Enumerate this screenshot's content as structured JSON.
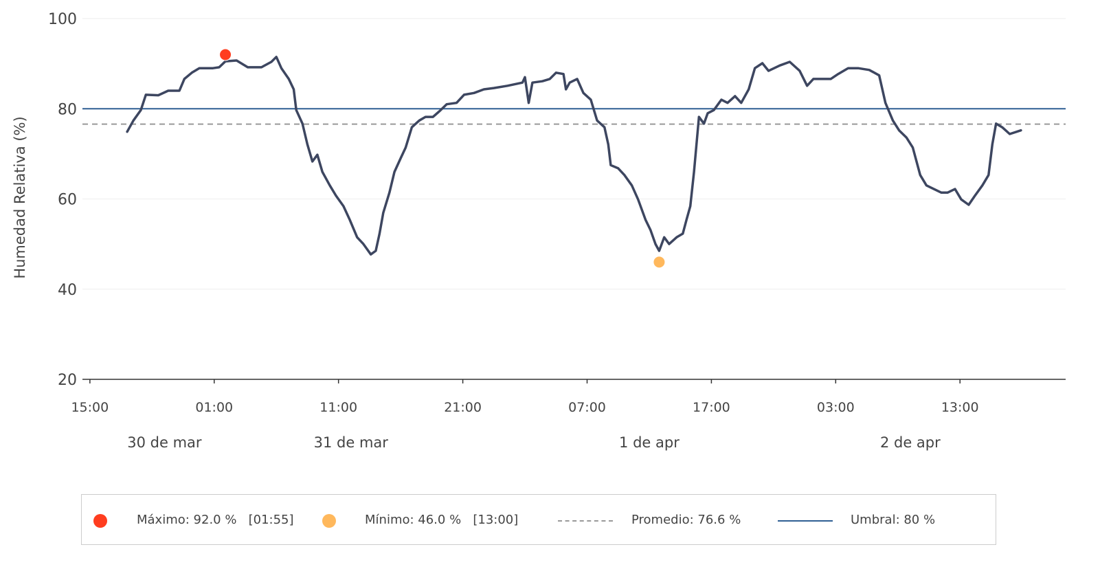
{
  "chart_data": {
    "type": "line",
    "title": "",
    "ylabel": "Humedad Relativa (%)",
    "xlabel": "",
    "x_unit": "hours since 30 mar 15:00",
    "xlim": [
      -0.6,
      78.5
    ],
    "ylim": [
      20,
      100
    ],
    "yticks": [
      20,
      40,
      60,
      80,
      100
    ],
    "xticks": [
      {
        "h": 0,
        "label": "15:00"
      },
      {
        "h": 10,
        "label": "01:00"
      },
      {
        "h": 20,
        "label": "11:00"
      },
      {
        "h": 30,
        "label": "21:00"
      },
      {
        "h": 40,
        "label": "07:00"
      },
      {
        "h": 50,
        "label": "17:00"
      },
      {
        "h": 60,
        "label": "03:00"
      },
      {
        "h": 70,
        "label": "13:00"
      }
    ],
    "date_labels": [
      {
        "h": 6,
        "label": "30 de mar"
      },
      {
        "h": 21,
        "label": "31 de mar"
      },
      {
        "h": 45,
        "label": "1 de apr"
      },
      {
        "h": 66,
        "label": "2 de apr"
      }
    ],
    "grid": true,
    "colors": {
      "line": "#3d4660",
      "max": "#ff3d1f",
      "min": "#ffb85c",
      "avg": "#999999",
      "threshold": "#2f5f93"
    },
    "series": [
      {
        "name": "Humedad Relativa",
        "x": [
          3.0,
          3.5,
          4.1,
          4.5,
          5.5,
          6.3,
          7.2,
          7.6,
          8.2,
          8.8,
          9.3,
          9.9,
          10.4,
          10.9,
          11.8,
          12.7,
          13.8,
          14.6,
          15.0,
          15.4,
          16.0,
          16.4,
          16.6,
          17.1,
          17.5,
          17.9,
          18.3,
          18.7,
          19.3,
          19.8,
          20.4,
          20.9,
          21.5,
          22.0,
          22.6,
          23.0,
          23.3,
          23.6,
          24.1,
          24.5,
          25.0,
          25.4,
          25.9,
          26.5,
          27.0,
          27.6,
          28.1,
          28.7,
          29.5,
          30.1,
          30.9,
          31.7,
          32.5,
          33.6,
          34.8,
          35.0,
          35.3,
          35.6,
          36.4,
          37.0,
          37.5,
          38.1,
          38.3,
          38.6,
          39.2,
          39.7,
          40.3,
          40.8,
          41.4,
          41.7,
          41.9,
          42.5,
          43.0,
          43.6,
          44.1,
          44.7,
          45.1,
          45.5,
          45.8,
          46.2,
          46.6,
          47.2,
          47.7,
          48.0,
          48.3,
          48.6,
          48.8,
          49.0,
          49.4,
          49.7,
          50.2,
          50.8,
          51.3,
          51.9,
          52.4,
          53.0,
          53.5,
          54.1,
          54.6,
          55.5,
          56.3,
          57.1,
          57.7,
          58.2,
          59.1,
          59.6,
          60.2,
          61.0,
          61.8,
          62.7,
          63.5,
          64.0,
          64.6,
          65.1,
          65.7,
          66.2,
          66.8,
          67.3,
          67.9,
          68.5,
          69.0,
          69.6,
          70.1,
          70.7,
          71.2,
          71.8,
          72.3,
          72.6,
          72.9,
          73.4,
          74.0,
          74.9
        ],
        "y": [
          74.9,
          77.4,
          79.7,
          83.1,
          83.0,
          84.0,
          84.0,
          86.6,
          88.0,
          89.0,
          89.0,
          89.0,
          89.2,
          90.5,
          90.7,
          89.2,
          89.2,
          90.4,
          91.5,
          89.0,
          86.6,
          84.3,
          79.7,
          76.7,
          72.1,
          68.3,
          69.8,
          66.0,
          63.0,
          60.7,
          58.4,
          55.4,
          51.5,
          50.0,
          47.7,
          48.5,
          52.3,
          56.9,
          61.4,
          66.0,
          69.0,
          71.4,
          75.9,
          77.4,
          78.2,
          78.2,
          79.4,
          81.0,
          81.3,
          83.1,
          83.5,
          84.3,
          84.6,
          85.1,
          85.8,
          87.0,
          81.3,
          85.8,
          86.1,
          86.6,
          88.0,
          87.7,
          84.3,
          85.8,
          86.6,
          83.5,
          82.0,
          77.4,
          75.9,
          72.1,
          67.5,
          66.8,
          65.3,
          63.0,
          59.9,
          55.4,
          53.1,
          50.0,
          48.5,
          51.5,
          50.0,
          51.5,
          52.3,
          55.4,
          58.4,
          66.0,
          72.1,
          78.2,
          76.7,
          79.0,
          79.7,
          82.0,
          81.3,
          82.8,
          81.3,
          84.3,
          89.0,
          90.1,
          88.4,
          89.6,
          90.4,
          88.4,
          85.1,
          86.6,
          86.6,
          86.6,
          87.7,
          89.0,
          89.0,
          88.6,
          87.4,
          81.3,
          77.4,
          75.2,
          73.6,
          71.4,
          65.3,
          63.0,
          62.2,
          61.4,
          61.4,
          62.2,
          59.9,
          58.7,
          60.7,
          63.0,
          65.3,
          72.1,
          76.7,
          75.9,
          74.4,
          75.2
        ]
      }
    ],
    "max_point": {
      "h": 10.9,
      "value": 92.0
    },
    "min_point": {
      "h": 45.8,
      "value": 46.0
    },
    "average": 76.6,
    "threshold": 80,
    "legend": {
      "placement": "bottom",
      "max_label": "Máximo: 92.0 %   [01:55]",
      "min_label": "Mínimo: 46.0 %   [13:00]",
      "avg_label": "Promedio: 76.6 %",
      "threshold_label": "Umbral: 80 %"
    }
  }
}
